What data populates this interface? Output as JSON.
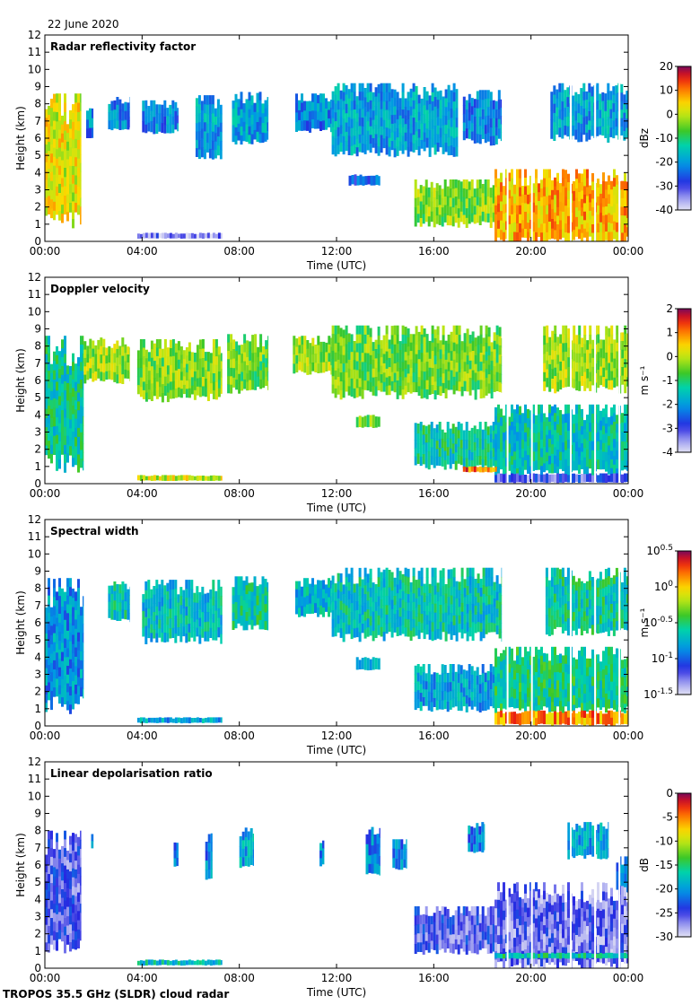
{
  "header": {
    "date": "22 June 2020"
  },
  "footer": {
    "label": "TROPOS 35.5 GHz (SLDR) cloud radar"
  },
  "chart_data": [
    {
      "type": "heatmap",
      "title": "Radar reflectivity factor",
      "xlabel": "Time (UTC)",
      "ylabel": "Height (km)",
      "x_ticks": [
        "00:00",
        "04:00",
        "08:00",
        "12:00",
        "16:00",
        "20:00",
        "00:00"
      ],
      "y_ticks": [
        "0",
        "1",
        "2",
        "3",
        "4",
        "5",
        "6",
        "7",
        "8",
        "9",
        "10",
        "11",
        "12"
      ],
      "xlim_hours": [
        0,
        24
      ],
      "ylim_km": [
        0,
        12
      ],
      "colorbar": {
        "ticks": [
          "20",
          "10",
          "0",
          "-10",
          "-20",
          "-30",
          "-40"
        ],
        "label": "dBz",
        "range": [
          -40,
          20
        ]
      },
      "features": [
        {
          "start_h": 0.0,
          "end_h": 1.5,
          "base_km": 1.3,
          "top_km": 8.6,
          "value": 0.7
        },
        {
          "start_h": 1.7,
          "end_h": 2.0,
          "base_km": 6.0,
          "top_km": 7.8,
          "value": 0.3
        },
        {
          "start_h": 2.6,
          "end_h": 3.5,
          "base_km": 6.6,
          "top_km": 8.4,
          "value": 0.3
        },
        {
          "start_h": 4.0,
          "end_h": 5.5,
          "base_km": 6.4,
          "top_km": 8.2,
          "value": 0.3
        },
        {
          "start_h": 6.2,
          "end_h": 7.3,
          "base_km": 5.0,
          "top_km": 8.5,
          "value": 0.35
        },
        {
          "start_h": 7.7,
          "end_h": 9.2,
          "base_km": 5.8,
          "top_km": 8.7,
          "value": 0.35
        },
        {
          "start_h": 10.3,
          "end_h": 11.8,
          "base_km": 6.5,
          "top_km": 8.6,
          "value": 0.3
        },
        {
          "start_h": 11.8,
          "end_h": 17.0,
          "base_km": 5.2,
          "top_km": 9.2,
          "value": 0.35
        },
        {
          "start_h": 17.2,
          "end_h": 18.8,
          "base_km": 5.8,
          "top_km": 8.8,
          "value": 0.3
        },
        {
          "start_h": 20.8,
          "end_h": 24.0,
          "base_km": 6.0,
          "top_km": 9.2,
          "value": 0.35
        },
        {
          "start_h": 12.5,
          "end_h": 13.8,
          "base_km": 3.3,
          "top_km": 3.9,
          "value": 0.25
        },
        {
          "start_h": 15.2,
          "end_h": 18.5,
          "base_km": 1.0,
          "top_km": 3.6,
          "value": 0.6
        },
        {
          "start_h": 18.5,
          "end_h": 24.0,
          "base_km": 0.0,
          "top_km": 4.2,
          "value": 0.78
        },
        {
          "start_h": 3.8,
          "end_h": 7.3,
          "base_km": 0.2,
          "top_km": 0.5,
          "value": 0.1
        }
      ]
    },
    {
      "type": "heatmap",
      "title": "Doppler velocity",
      "xlabel": "Time (UTC)",
      "ylabel": "Height (km)",
      "x_ticks": [
        "00:00",
        "04:00",
        "08:00",
        "12:00",
        "16:00",
        "20:00",
        "00:00"
      ],
      "y_ticks": [
        "0",
        "1",
        "2",
        "3",
        "4",
        "5",
        "6",
        "7",
        "8",
        "9",
        "10",
        "11",
        "12"
      ],
      "xlim_hours": [
        0,
        24
      ],
      "ylim_km": [
        0,
        12
      ],
      "colorbar": {
        "ticks": [
          "2",
          "1",
          "0",
          "-1",
          "-2",
          "-3",
          "-4"
        ],
        "label": "m s⁻¹",
        "range": [
          -4,
          2
        ]
      },
      "features": [
        {
          "start_h": 0.0,
          "end_h": 1.6,
          "base_km": 1.2,
          "top_km": 8.6,
          "value": 0.45
        },
        {
          "start_h": 1.6,
          "end_h": 3.5,
          "base_km": 6.0,
          "top_km": 8.5,
          "value": 0.62
        },
        {
          "start_h": 3.8,
          "end_h": 7.3,
          "base_km": 5.0,
          "top_km": 8.4,
          "value": 0.6
        },
        {
          "start_h": 7.5,
          "end_h": 9.2,
          "base_km": 5.5,
          "top_km": 8.7,
          "value": 0.58
        },
        {
          "start_h": 10.2,
          "end_h": 11.8,
          "base_km": 6.5,
          "top_km": 8.6,
          "value": 0.62
        },
        {
          "start_h": 11.8,
          "end_h": 18.8,
          "base_km": 5.2,
          "top_km": 9.2,
          "value": 0.58
        },
        {
          "start_h": 20.5,
          "end_h": 24.0,
          "base_km": 5.5,
          "top_km": 9.2,
          "value": 0.63
        },
        {
          "start_h": 12.8,
          "end_h": 13.8,
          "base_km": 3.3,
          "top_km": 4.0,
          "value": 0.6
        },
        {
          "start_h": 15.2,
          "end_h": 18.5,
          "base_km": 1.0,
          "top_km": 3.6,
          "value": 0.45
        },
        {
          "start_h": 18.5,
          "end_h": 24.0,
          "base_km": 0.6,
          "top_km": 4.6,
          "value": 0.42
        },
        {
          "start_h": 18.5,
          "end_h": 24.0,
          "base_km": 0.1,
          "top_km": 0.6,
          "value": 0.15
        },
        {
          "start_h": 3.8,
          "end_h": 7.3,
          "base_km": 0.2,
          "top_km": 0.5,
          "value": 0.68
        },
        {
          "start_h": 17.2,
          "end_h": 18.6,
          "base_km": 0.7,
          "top_km": 1.0,
          "value": 0.85
        }
      ]
    },
    {
      "type": "heatmap",
      "title": "Spectral width",
      "xlabel": "Time (UTC)",
      "ylabel": "Height (km)",
      "x_ticks": [
        "00:00",
        "04:00",
        "08:00",
        "12:00",
        "16:00",
        "20:00",
        "00:00"
      ],
      "y_ticks": [
        "0",
        "1",
        "2",
        "3",
        "4",
        "5",
        "6",
        "7",
        "8",
        "9",
        "10",
        "11",
        "12"
      ],
      "xlim_hours": [
        0,
        24
      ],
      "ylim_km": [
        0,
        12
      ],
      "colorbar": {
        "ticks": [
          "10^0.5",
          "10^0",
          "10^-0.5",
          "10^-1",
          "10^-1.5"
        ],
        "label": "m s⁻¹",
        "range": [
          -1.5,
          0.5
        ],
        "scale": "log10"
      },
      "features": [
        {
          "start_h": 0.0,
          "end_h": 1.6,
          "base_km": 1.2,
          "top_km": 8.6,
          "value": 0.32
        },
        {
          "start_h": 2.6,
          "end_h": 3.5,
          "base_km": 6.2,
          "top_km": 8.4,
          "value": 0.42
        },
        {
          "start_h": 4.0,
          "end_h": 7.3,
          "base_km": 5.0,
          "top_km": 8.5,
          "value": 0.4
        },
        {
          "start_h": 7.7,
          "end_h": 9.2,
          "base_km": 5.8,
          "top_km": 8.7,
          "value": 0.45
        },
        {
          "start_h": 10.3,
          "end_h": 11.8,
          "base_km": 6.5,
          "top_km": 8.6,
          "value": 0.38
        },
        {
          "start_h": 11.8,
          "end_h": 18.8,
          "base_km": 5.2,
          "top_km": 9.2,
          "value": 0.42
        },
        {
          "start_h": 20.6,
          "end_h": 24.0,
          "base_km": 5.5,
          "top_km": 9.2,
          "value": 0.45
        },
        {
          "start_h": 12.8,
          "end_h": 13.8,
          "base_km": 3.3,
          "top_km": 4.0,
          "value": 0.4
        },
        {
          "start_h": 15.2,
          "end_h": 18.5,
          "base_km": 1.0,
          "top_km": 3.6,
          "value": 0.35
        },
        {
          "start_h": 18.5,
          "end_h": 24.0,
          "base_km": 0.9,
          "top_km": 4.6,
          "value": 0.48
        },
        {
          "start_h": 18.5,
          "end_h": 24.0,
          "base_km": 0.1,
          "top_km": 0.9,
          "value": 0.82
        },
        {
          "start_h": 3.8,
          "end_h": 7.3,
          "base_km": 0.2,
          "top_km": 0.5,
          "value": 0.35
        }
      ]
    },
    {
      "type": "heatmap",
      "title": "Linear depolarisation ratio",
      "xlabel": "Time (UTC)",
      "ylabel": "Height (km)",
      "x_ticks": [
        "00:00",
        "04:00",
        "08:00",
        "12:00",
        "16:00",
        "20:00",
        "00:00"
      ],
      "y_ticks": [
        "0",
        "1",
        "2",
        "3",
        "4",
        "5",
        "6",
        "7",
        "8",
        "9",
        "10",
        "11",
        "12"
      ],
      "xlim_hours": [
        0,
        24
      ],
      "ylim_km": [
        0,
        12
      ],
      "colorbar": {
        "ticks": [
          "0",
          "-5",
          "-10",
          "-15",
          "-20",
          "-25",
          "-30"
        ],
        "label": "dB",
        "range": [
          -30,
          0
        ]
      },
      "features": [
        {
          "start_h": 0.0,
          "end_h": 1.5,
          "base_km": 1.3,
          "top_km": 8.0,
          "value": 0.15
        },
        {
          "start_h": 1.9,
          "end_h": 2.0,
          "base_km": 7.0,
          "top_km": 7.8,
          "value": 0.3
        },
        {
          "start_h": 5.3,
          "end_h": 5.5,
          "base_km": 6.0,
          "top_km": 7.5,
          "value": 0.3
        },
        {
          "start_h": 6.6,
          "end_h": 6.9,
          "base_km": 5.2,
          "top_km": 8.0,
          "value": 0.3
        },
        {
          "start_h": 8.0,
          "end_h": 8.6,
          "base_km": 6.0,
          "top_km": 8.2,
          "value": 0.35
        },
        {
          "start_h": 11.3,
          "end_h": 11.5,
          "base_km": 6.0,
          "top_km": 7.5,
          "value": 0.3
        },
        {
          "start_h": 13.2,
          "end_h": 13.8,
          "base_km": 5.5,
          "top_km": 8.5,
          "value": 0.3
        },
        {
          "start_h": 14.3,
          "end_h": 14.9,
          "base_km": 5.8,
          "top_km": 7.5,
          "value": 0.3
        },
        {
          "start_h": 17.4,
          "end_h": 18.1,
          "base_km": 6.8,
          "top_km": 8.5,
          "value": 0.3
        },
        {
          "start_h": 21.5,
          "end_h": 23.2,
          "base_km": 6.5,
          "top_km": 8.5,
          "value": 0.35
        },
        {
          "start_h": 23.5,
          "end_h": 24.0,
          "base_km": 4.5,
          "top_km": 6.5,
          "value": 0.3
        },
        {
          "start_h": 15.2,
          "end_h": 18.5,
          "base_km": 1.0,
          "top_km": 3.6,
          "value": 0.15
        },
        {
          "start_h": 18.5,
          "end_h": 24.0,
          "base_km": 0.1,
          "top_km": 5.0,
          "value": 0.12
        },
        {
          "start_h": 18.5,
          "end_h": 24.0,
          "base_km": 0.6,
          "top_km": 0.9,
          "value": 0.45
        },
        {
          "start_h": 3.8,
          "end_h": 7.3,
          "base_km": 0.2,
          "top_km": 0.5,
          "value": 0.4
        }
      ]
    }
  ]
}
